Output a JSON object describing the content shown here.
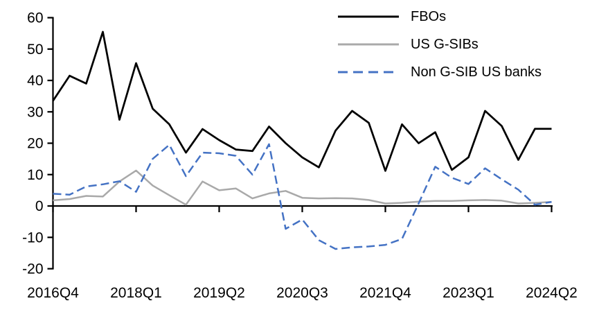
{
  "chart_data": {
    "type": "line",
    "title": "",
    "xlabel": "",
    "ylabel": "",
    "grid": false,
    "legend_position": "top-right",
    "ylim": [
      -20,
      60
    ],
    "y_tick_step": 10,
    "y_tick_labels": [
      "60",
      "50",
      "40",
      "30",
      "20",
      "10",
      "0",
      "-10",
      "-20"
    ],
    "x_tick_indices": [
      0,
      5,
      10,
      15,
      20,
      25,
      30
    ],
    "x_tick_labels": [
      "2016Q4",
      "2018Q1",
      "2019Q2",
      "2020Q3",
      "2021Q4",
      "2023Q1",
      "2024Q2"
    ],
    "x_labels": [
      "2016Q4",
      "2017Q1",
      "2017Q2",
      "2017Q3",
      "2017Q4",
      "2018Q1",
      "2018Q2",
      "2018Q3",
      "2018Q4",
      "2019Q1",
      "2019Q2",
      "2019Q3",
      "2019Q4",
      "2020Q1",
      "2020Q2",
      "2020Q3",
      "2020Q4",
      "2021Q1",
      "2021Q2",
      "2021Q3",
      "2021Q4",
      "2022Q1",
      "2022Q2",
      "2022Q3",
      "2022Q4",
      "2023Q1",
      "2023Q2",
      "2023Q3",
      "2023Q4",
      "2024Q1",
      "2024Q2"
    ],
    "series": [
      {
        "id": "fbos",
        "name": "FBOs",
        "color": "#000000",
        "dash": null,
        "values": [
          33.5,
          41.5,
          39,
          55.5,
          27.5,
          45.5,
          31,
          26,
          17,
          24.5,
          21,
          18,
          17.5,
          25.3,
          20,
          15.5,
          12.3,
          24,
          30.3,
          26.5,
          11.2,
          26,
          20,
          23.5,
          11.5,
          15.5,
          30.3,
          25.5,
          14.7,
          24.6,
          24.6
        ]
      },
      {
        "id": "us-gsibs",
        "name": "US G-SIBs",
        "color": "#A9A9A9",
        "dash": null,
        "values": [
          1.8,
          2.2,
          3.2,
          3,
          7.8,
          11.3,
          6.5,
          3.4,
          0.4,
          7.8,
          5,
          5.6,
          2.4,
          4,
          4.8,
          2.6,
          2.4,
          2.5,
          2.4,
          1.9,
          0.8,
          1,
          1.4,
          1.6,
          1.6,
          1.8,
          1.9,
          1.7,
          0.8,
          1,
          1.3
        ]
      },
      {
        "id": "non-gsib-us-banks",
        "name": "Non G-SIB US banks",
        "color": "#4472C4",
        "dash": [
          12,
          6
        ],
        "values": [
          3.9,
          3.6,
          6.2,
          6.9,
          7.9,
          4.5,
          15,
          19.5,
          9.5,
          17,
          16.8,
          16,
          10,
          19.7,
          -7.3,
          -4.3,
          -10.9,
          -13.7,
          -13.2,
          -12.9,
          -12.4,
          -10.5,
          0.8,
          12.5,
          9,
          7,
          12,
          8.5,
          5.2,
          0.4,
          1.3
        ]
      }
    ]
  },
  "colors": {
    "background": "#FFFFFF",
    "axis": "#000000",
    "tick_label": "#000000"
  }
}
